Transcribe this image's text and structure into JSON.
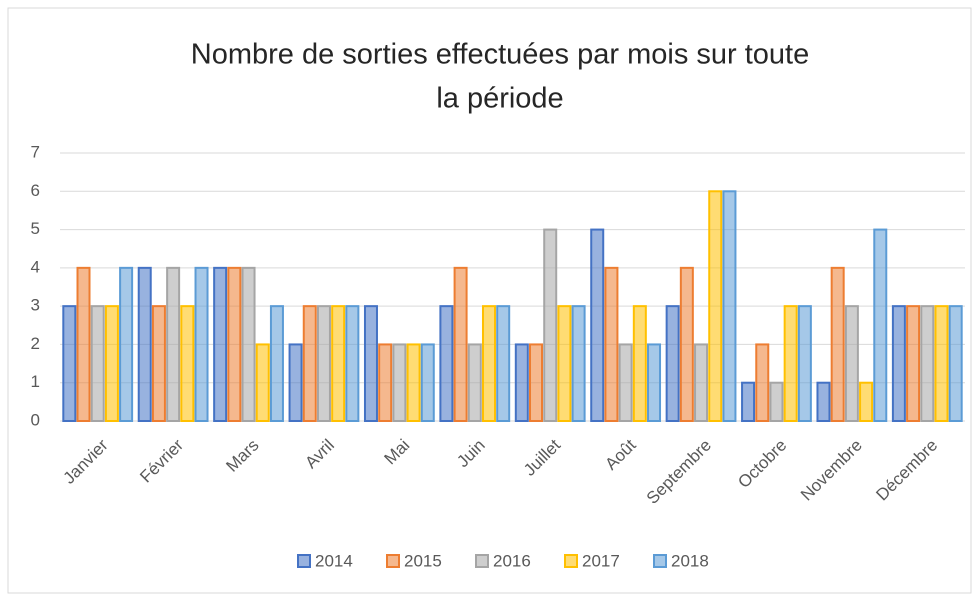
{
  "chart_data": {
    "type": "bar",
    "title": [
      "Nombre de sorties effectuées par mois sur toute",
      "la période"
    ],
    "categories": [
      "Janvier",
      "Février",
      "Mars",
      "Avril",
      "Mai",
      "Juin",
      "Juillet",
      "Août",
      "Septembre",
      "Octobre",
      "Novembre",
      "Décembre"
    ],
    "series": [
      {
        "name": "2014",
        "color": "#4472c4",
        "values": [
          3,
          4,
          4,
          2,
          3,
          3,
          2,
          5,
          3,
          1,
          1,
          3
        ]
      },
      {
        "name": "2015",
        "color": "#ed7d31",
        "values": [
          4,
          3,
          4,
          3,
          2,
          4,
          2,
          4,
          4,
          2,
          4,
          3
        ]
      },
      {
        "name": "2016",
        "color": "#a5a5a5",
        "values": [
          3,
          4,
          4,
          3,
          2,
          2,
          5,
          2,
          2,
          1,
          3,
          3
        ]
      },
      {
        "name": "2017",
        "color": "#ffc000",
        "values": [
          3,
          3,
          2,
          3,
          2,
          3,
          3,
          3,
          6,
          3,
          1,
          3
        ]
      },
      {
        "name": "2018",
        "color": "#5b9bd5",
        "values": [
          4,
          4,
          3,
          3,
          2,
          3,
          3,
          2,
          6,
          3,
          5,
          3
        ]
      }
    ],
    "ylim": [
      0,
      7
    ],
    "yticks": [
      0,
      1,
      2,
      3,
      4,
      5,
      6,
      7
    ],
    "grid": true,
    "legend": "bottom"
  }
}
